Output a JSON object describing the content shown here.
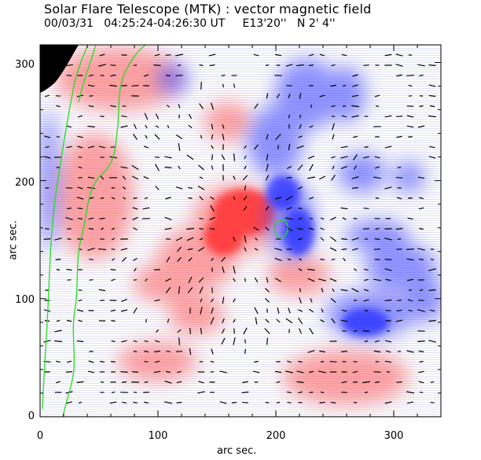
{
  "figure": {
    "title": "Solar Flare Telescope (MTK) : vector magnetic field",
    "subtitle": "00/03/31   04:25:24-04:26:30 UT     E13'20''   N 2' 4''",
    "xlabel": "arc sec.",
    "ylabel": "arc sec."
  },
  "colors": {
    "positive": "#ff4d4d",
    "negative": "#3d43ff",
    "contour": "#22dd22",
    "arrows": "#000000",
    "limb": "#000000"
  },
  "axes": {
    "x_ticks": [
      "0",
      "100",
      "200",
      "300"
    ],
    "y_ticks": [
      "0",
      "100",
      "200",
      "300"
    ],
    "xlim": [
      0,
      340
    ],
    "ylim": [
      0,
      315
    ]
  }
}
